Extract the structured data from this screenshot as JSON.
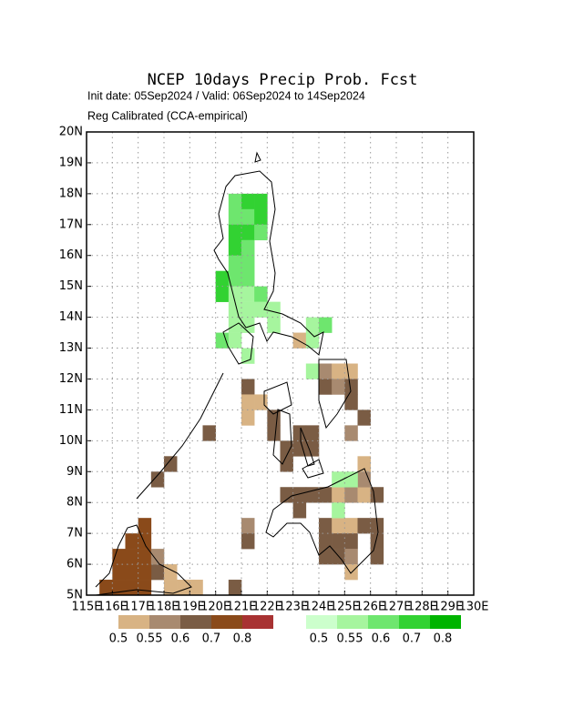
{
  "chart_data": {
    "type": "grid-map",
    "title": "NCEP 10days Precip Prob. Fcst",
    "subtitle": "Init date: 05Sep2024 / Valid: 06Sep2024 to 14Sep2024",
    "note": "Reg Calibrated (CCA-empirical)",
    "xlim": [
      115,
      130
    ],
    "ylim": [
      5,
      20
    ],
    "grid": true,
    "xticks": [
      {
        "value": 115,
        "label": "115E"
      },
      {
        "value": 116,
        "label": "116E"
      },
      {
        "value": 117,
        "label": "117E"
      },
      {
        "value": 118,
        "label": "118E"
      },
      {
        "value": 119,
        "label": "119E"
      },
      {
        "value": 120,
        "label": "120E"
      },
      {
        "value": 121,
        "label": "121E"
      },
      {
        "value": 122,
        "label": "122E"
      },
      {
        "value": 123,
        "label": "123E"
      },
      {
        "value": 124,
        "label": "124E"
      },
      {
        "value": 125,
        "label": "125E"
      },
      {
        "value": 126,
        "label": "126E"
      },
      {
        "value": 127,
        "label": "127E"
      },
      {
        "value": 128,
        "label": "128E"
      },
      {
        "value": 129,
        "label": "129E"
      },
      {
        "value": 130,
        "label": "130E"
      }
    ],
    "yticks": [
      {
        "value": 5,
        "label": "5N"
      },
      {
        "value": 6,
        "label": "6N"
      },
      {
        "value": 7,
        "label": "7N"
      },
      {
        "value": 8,
        "label": "8N"
      },
      {
        "value": 9,
        "label": "9N"
      },
      {
        "value": 10,
        "label": "10N"
      },
      {
        "value": 11,
        "label": "11N"
      },
      {
        "value": 12,
        "label": "12N"
      },
      {
        "value": 13,
        "label": "13N"
      },
      {
        "value": 14,
        "label": "14N"
      },
      {
        "value": 15,
        "label": "15N"
      },
      {
        "value": 16,
        "label": "16N"
      },
      {
        "value": 17,
        "label": "17N"
      },
      {
        "value": 18,
        "label": "18N"
      },
      {
        "value": 19,
        "label": "19N"
      },
      {
        "value": 20,
        "label": "20N"
      }
    ],
    "scales": [
      {
        "colors": [
          "#d8b384",
          "#a88a70",
          "#7a5c44",
          "#8a4a1a",
          "#a83232"
        ],
        "thresholds": [
          0.5,
          0.55,
          0.6,
          0.7,
          0.8
        ]
      },
      {
        "colors": [
          "#ccffcc",
          "#a6f59e",
          "#6ee66e",
          "#32d232",
          "#00b400"
        ],
        "thresholds": [
          0.5,
          0.55,
          0.6,
          0.7,
          0.8
        ]
      }
    ],
    "series": [
      {
        "scale": 0,
        "cells": [
          [
            121,
            11.5,
            0.6
          ],
          [
            121,
            11,
            0.52
          ],
          [
            121.5,
            11,
            0.52
          ],
          [
            121,
            10.5,
            0.52
          ],
          [
            122,
            10.5,
            0.6
          ],
          [
            122,
            10,
            0.65
          ],
          [
            123,
            10,
            0.6
          ],
          [
            123.5,
            10,
            0.6
          ],
          [
            122.5,
            9.5,
            0.6
          ],
          [
            123,
            9.5,
            0.6
          ],
          [
            123.5,
            9.5,
            0.6
          ],
          [
            122.5,
            9,
            0.6
          ],
          [
            124,
            12,
            0.57
          ],
          [
            124.5,
            12,
            0.52
          ],
          [
            125,
            12,
            0.52
          ],
          [
            124,
            11.5,
            0.6
          ],
          [
            124.5,
            11.5,
            0.57
          ],
          [
            125,
            11.5,
            0.6
          ],
          [
            125,
            11,
            0.6
          ],
          [
            125.5,
            10.5,
            0.6
          ],
          [
            125,
            10,
            0.57
          ],
          [
            123,
            13,
            0.52
          ],
          [
            122.5,
            8,
            0.6
          ],
          [
            123,
            8,
            0.6
          ],
          [
            123.5,
            8,
            0.6
          ],
          [
            124,
            8,
            0.6
          ],
          [
            124.5,
            8,
            0.52
          ],
          [
            125,
            8,
            0.57
          ],
          [
            125.5,
            8,
            0.52
          ],
          [
            126,
            8,
            0.6
          ],
          [
            125.5,
            8.5,
            0.57
          ],
          [
            125.5,
            9,
            0.52
          ],
          [
            121,
            7,
            0.57
          ],
          [
            121,
            6.5,
            0.6
          ],
          [
            123,
            7.5,
            0.6
          ],
          [
            124,
            7,
            0.6
          ],
          [
            124.5,
            7,
            0.52
          ],
          [
            125,
            7,
            0.52
          ],
          [
            125.5,
            7,
            0.6
          ],
          [
            126,
            7,
            0.6
          ],
          [
            124,
            6.5,
            0.6
          ],
          [
            124.5,
            6.5,
            0.6
          ],
          [
            125,
            6.5,
            0.6
          ],
          [
            126,
            6.5,
            0.6
          ],
          [
            124,
            6,
            0.6
          ],
          [
            124.5,
            6,
            0.6
          ],
          [
            125,
            6,
            0.57
          ],
          [
            125,
            5.5,
            0.52
          ],
          [
            126,
            6,
            0.65
          ],
          [
            115.5,
            5,
            0.7
          ],
          [
            116,
            5,
            0.7
          ],
          [
            116.5,
            5,
            0.7
          ],
          [
            117,
            5,
            0.7
          ],
          [
            117.5,
            5.5,
            0.6
          ],
          [
            116,
            5.5,
            0.7
          ],
          [
            116.5,
            5.5,
            0.7
          ],
          [
            117,
            5.5,
            0.7
          ],
          [
            116,
            6,
            0.7
          ],
          [
            116.5,
            6,
            0.7
          ],
          [
            117,
            6,
            0.7
          ],
          [
            116.5,
            6.5,
            0.7
          ],
          [
            117,
            6.5,
            0.7
          ],
          [
            117,
            7,
            0.7
          ],
          [
            117.5,
            6,
            0.57
          ],
          [
            118,
            5.5,
            0.52
          ],
          [
            118,
            5,
            0.52
          ],
          [
            118.5,
            5,
            0.52
          ],
          [
            119,
            5,
            0.52
          ],
          [
            117.5,
            8.5,
            0.6
          ],
          [
            118,
            9,
            0.6
          ],
          [
            119.5,
            10,
            0.6
          ],
          [
            120.5,
            5,
            0.6
          ]
        ]
      },
      {
        "scale": 1,
        "cells": [
          [
            120.5,
            17.5,
            0.6
          ],
          [
            121,
            17.5,
            0.75
          ],
          [
            121.5,
            17.5,
            0.75
          ],
          [
            120.5,
            17,
            0.6
          ],
          [
            121,
            17,
            0.6
          ],
          [
            121.5,
            17,
            0.75
          ],
          [
            120.5,
            16.5,
            0.75
          ],
          [
            121,
            16.5,
            0.75
          ],
          [
            121.5,
            16.5,
            0.6
          ],
          [
            120.5,
            16,
            0.75
          ],
          [
            121,
            16,
            0.6
          ],
          [
            120.5,
            15.5,
            0.6
          ],
          [
            121,
            15.5,
            0.6
          ],
          [
            120,
            15,
            0.75
          ],
          [
            120.5,
            15,
            0.6
          ],
          [
            121,
            15,
            0.6
          ],
          [
            120,
            14.5,
            0.75
          ],
          [
            120.5,
            14.5,
            0.55
          ],
          [
            121,
            14.5,
            0.55
          ],
          [
            121.5,
            14.5,
            0.6
          ],
          [
            120.5,
            14,
            0.55
          ],
          [
            121,
            14,
            0.55
          ],
          [
            121.5,
            14,
            0.55
          ],
          [
            122,
            14,
            0.55
          ],
          [
            120.5,
            13.5,
            0.55
          ],
          [
            121,
            13.5,
            0.55
          ],
          [
            122,
            13.5,
            0.55
          ],
          [
            123.5,
            13.5,
            0.55
          ],
          [
            124,
            13.5,
            0.6
          ],
          [
            120,
            13,
            0.6
          ],
          [
            120.5,
            13,
            0.55
          ],
          [
            123.5,
            13,
            0.55
          ],
          [
            121,
            12.5,
            0.55
          ],
          [
            123.5,
            12,
            0.55
          ],
          [
            124.5,
            8.5,
            0.55
          ],
          [
            125,
            8.5,
            0.55
          ],
          [
            124.5,
            7.5,
            0.55
          ]
        ]
      }
    ]
  }
}
